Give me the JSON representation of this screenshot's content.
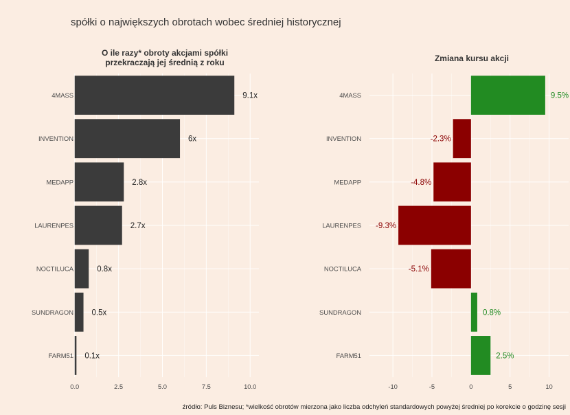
{
  "title": "spółki o największych obrotach wobec średniej historycznej",
  "caption": "źródło: Puls Biznesu; *wielkość obrotów mierzona jako liczba odchyleń standardowych powyżej średniej po korekcie o godzinę sesji",
  "colors": {
    "background": "#fbede2",
    "grid": "#ffffff",
    "left_bar": "#3b3b3b",
    "positive": "#228b22",
    "negative": "#8b0000",
    "left_label": "#222222"
  },
  "chart_data": [
    {
      "type": "bar",
      "orientation": "horizontal",
      "title_lines": [
        "O ile razy* obroty akcjami spółki",
        "przekraczają jej średnią z roku"
      ],
      "categories": [
        "4MASS",
        "INVENTION",
        "MEDAPP",
        "LAURENPES",
        "NOCTILUCA",
        "SUNDRAGON",
        "FARM51"
      ],
      "values": [
        9.1,
        6.0,
        2.8,
        2.7,
        0.8,
        0.5,
        0.1
      ],
      "data_labels": [
        "9.1x",
        "6x",
        "2.8x",
        "2.7x",
        "0.8x",
        "0.5x",
        "0.1x"
      ],
      "xlim": [
        -0.5,
        10.5
      ],
      "x_ticks": [
        0,
        2.5,
        5,
        7.5,
        10
      ],
      "x_tick_labels": [
        "0.0",
        "2.5",
        "5.0",
        "7.5",
        "10.0"
      ],
      "grid": true
    },
    {
      "type": "bar",
      "orientation": "horizontal",
      "title_lines": [
        "Zmiana kursu akcji"
      ],
      "categories": [
        "4MASS",
        "INVENTION",
        "MEDAPP",
        "LAURENPES",
        "NOCTILUCA",
        "SUNDRAGON",
        "FARM51"
      ],
      "values": [
        9.5,
        -2.3,
        -4.8,
        -9.3,
        -5.1,
        0.8,
        2.5
      ],
      "data_labels": [
        "9.5%",
        "-2.3%",
        "-4.8%",
        "-9.3%",
        "-5.1%",
        "0.8%",
        "2.5%"
      ],
      "xlim": [
        -13,
        12.5
      ],
      "x_ticks": [
        -10,
        -5,
        0,
        5,
        10
      ],
      "x_tick_labels": [
        "-10",
        "-5",
        "0",
        "5",
        "10"
      ],
      "grid": true
    }
  ]
}
